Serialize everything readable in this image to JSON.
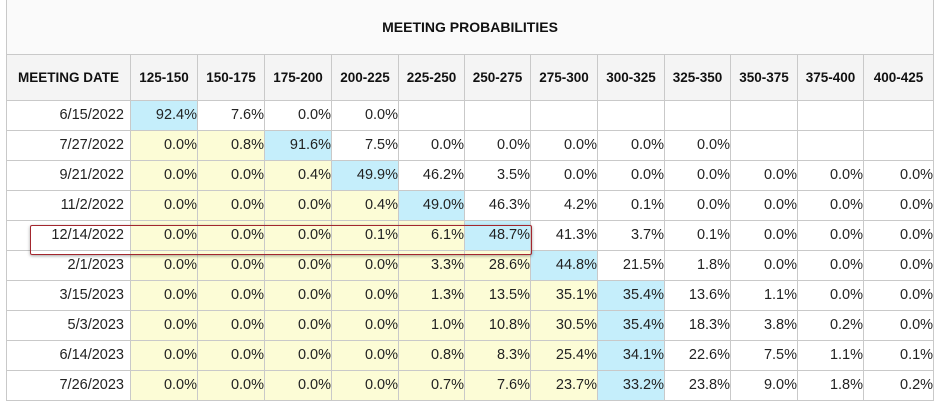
{
  "title": "MEETING PROBABILITIES",
  "header": {
    "first": "MEETING DATE",
    "ranges": [
      "125-150",
      "150-175",
      "175-200",
      "200-225",
      "225-250",
      "250-275",
      "275-300",
      "300-325",
      "325-350",
      "350-375",
      "375-400",
      "400-425"
    ]
  },
  "rows": [
    {
      "date": "6/15/2022",
      "values": [
        "92.4%",
        "7.6%",
        "0.0%",
        "0.0%",
        "",
        "",
        "",
        "",
        "",
        "",
        "",
        ""
      ],
      "shading": [
        "b",
        "w",
        "w",
        "w",
        "w",
        "w",
        "w",
        "w",
        "w",
        "w",
        "w",
        "w"
      ]
    },
    {
      "date": "7/27/2022",
      "values": [
        "0.0%",
        "0.8%",
        "91.6%",
        "7.5%",
        "0.0%",
        "0.0%",
        "0.0%",
        "0.0%",
        "0.0%",
        "",
        "",
        ""
      ],
      "shading": [
        "y",
        "y",
        "b",
        "w",
        "w",
        "w",
        "w",
        "w",
        "w",
        "w",
        "w",
        "w"
      ]
    },
    {
      "date": "9/21/2022",
      "values": [
        "0.0%",
        "0.0%",
        "0.4%",
        "49.9%",
        "46.2%",
        "3.5%",
        "0.0%",
        "0.0%",
        "0.0%",
        "0.0%",
        "0.0%",
        "0.0%"
      ],
      "shading": [
        "y",
        "y",
        "y",
        "b",
        "w",
        "w",
        "w",
        "w",
        "w",
        "w",
        "w",
        "w"
      ]
    },
    {
      "date": "11/2/2022",
      "values": [
        "0.0%",
        "0.0%",
        "0.0%",
        "0.4%",
        "49.0%",
        "46.3%",
        "4.2%",
        "0.1%",
        "0.0%",
        "0.0%",
        "0.0%",
        "0.0%"
      ],
      "shading": [
        "y",
        "y",
        "y",
        "y",
        "b",
        "w",
        "w",
        "w",
        "w",
        "w",
        "w",
        "w"
      ]
    },
    {
      "date": "12/14/2022",
      "values": [
        "0.0%",
        "0.0%",
        "0.0%",
        "0.1%",
        "6.1%",
        "48.7%",
        "41.3%",
        "3.7%",
        "0.1%",
        "0.0%",
        "0.0%",
        "0.0%"
      ],
      "shading": [
        "y",
        "y",
        "y",
        "y",
        "y",
        "b",
        "w",
        "w",
        "w",
        "w",
        "w",
        "w"
      ],
      "highlighted": true
    },
    {
      "date": "2/1/2023",
      "values": [
        "0.0%",
        "0.0%",
        "0.0%",
        "0.0%",
        "3.3%",
        "28.6%",
        "44.8%",
        "21.5%",
        "1.8%",
        "0.0%",
        "0.0%",
        "0.0%"
      ],
      "shading": [
        "y",
        "y",
        "y",
        "y",
        "y",
        "y",
        "b",
        "w",
        "w",
        "w",
        "w",
        "w"
      ]
    },
    {
      "date": "3/15/2023",
      "values": [
        "0.0%",
        "0.0%",
        "0.0%",
        "0.0%",
        "1.3%",
        "13.5%",
        "35.1%",
        "35.4%",
        "13.6%",
        "1.1%",
        "0.0%",
        "0.0%"
      ],
      "shading": [
        "y",
        "y",
        "y",
        "y",
        "y",
        "y",
        "y",
        "b",
        "w",
        "w",
        "w",
        "w"
      ]
    },
    {
      "date": "5/3/2023",
      "values": [
        "0.0%",
        "0.0%",
        "0.0%",
        "0.0%",
        "1.0%",
        "10.8%",
        "30.5%",
        "35.4%",
        "18.3%",
        "3.8%",
        "0.2%",
        "0.0%"
      ],
      "shading": [
        "y",
        "y",
        "y",
        "y",
        "y",
        "y",
        "y",
        "b",
        "w",
        "w",
        "w",
        "w"
      ]
    },
    {
      "date": "6/14/2023",
      "values": [
        "0.0%",
        "0.0%",
        "0.0%",
        "0.0%",
        "0.8%",
        "8.3%",
        "25.4%",
        "34.1%",
        "22.6%",
        "7.5%",
        "1.1%",
        "0.1%"
      ],
      "shading": [
        "y",
        "y",
        "y",
        "y",
        "y",
        "y",
        "y",
        "b",
        "w",
        "w",
        "w",
        "w"
      ]
    },
    {
      "date": "7/26/2023",
      "values": [
        "0.0%",
        "0.0%",
        "0.0%",
        "0.0%",
        "0.7%",
        "7.6%",
        "23.7%",
        "33.2%",
        "23.8%",
        "9.0%",
        "1.8%",
        "0.2%"
      ],
      "shading": [
        "y",
        "y",
        "y",
        "y",
        "y",
        "y",
        "y",
        "b",
        "w",
        "w",
        "w",
        "w"
      ]
    }
  ],
  "colors": {
    "current_blue": "#c5eefb",
    "below_yellow": "#fcfcd6",
    "highlight_border": "#a3262e"
  }
}
